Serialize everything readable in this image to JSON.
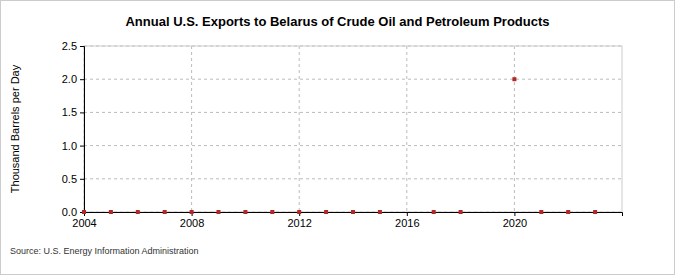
{
  "chart_data": {
    "type": "scatter",
    "title": "Annual U.S. Exports to Belarus of Crude Oil and Petroleum Products",
    "y_label": "Thousand Barrels per Day",
    "source": "Source: U.S. Energy Information Administration",
    "x": [
      2004,
      2005,
      2006,
      2007,
      2008,
      2009,
      2010,
      2011,
      2012,
      2013,
      2014,
      2015,
      2017,
      2018,
      2020,
      2021,
      2022,
      2023
    ],
    "values": [
      0,
      0,
      0,
      0,
      0,
      0,
      0,
      0,
      0,
      0,
      0,
      0,
      0,
      0,
      2,
      0,
      0,
      0
    ],
    "color": "#b0282a",
    "marker": "square",
    "xlim": [
      2004,
      2024
    ],
    "xticks": [
      2004,
      2008,
      2012,
      2016,
      2020
    ],
    "ylim": [
      0,
      2.5
    ],
    "yticks": [
      {
        "value": 0,
        "label": "0.0"
      },
      0.5,
      {
        "value": 1,
        "label": "1.0"
      },
      1.5,
      {
        "value": 2,
        "label": "2.0"
      },
      2.5
    ],
    "grid": true
  }
}
